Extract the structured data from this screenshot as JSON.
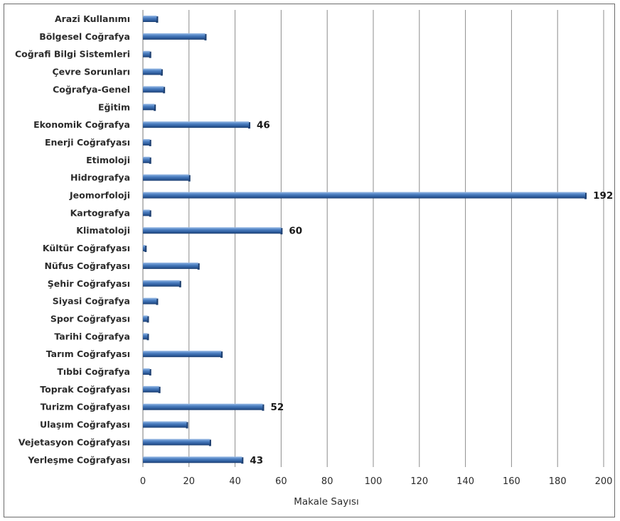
{
  "chart_data": {
    "type": "bar",
    "orientation": "horizontal",
    "title": "",
    "xlabel": "Makale Sayısı",
    "ylabel": "",
    "xlim": [
      0,
      200
    ],
    "x_ticks": [
      0,
      20,
      40,
      60,
      80,
      100,
      120,
      140,
      160,
      180,
      200
    ],
    "grid": true,
    "bar_color": "#4a7ebb",
    "categories": [
      "Arazi Kullanımı",
      "Bölgesel Coğrafya",
      "Coğrafi Bilgi Sistemleri",
      "Çevre Sorunları",
      "Coğrafya-Genel",
      "Eğitim",
      "Ekonomik Coğrafya",
      "Enerji Coğrafyası",
      "Etimoloji",
      "Hidrografya",
      "Jeomorfoloji",
      "Kartografya",
      "Klimatoloji",
      "Kültür Coğrafyası",
      "Nüfus Coğrafyası",
      "Şehir Coğrafyası",
      "Siyasi Coğrafya",
      "Spor Coğrafyası",
      "Tarihi Coğrafya",
      "Tarım Coğrafyası",
      "Tıbbi Coğrafya",
      "Toprak Coğrafyası",
      "Turizm Coğrafyası",
      "Ulaşım Coğrafyası",
      "Vejetasyon Coğrafyası",
      "Yerleşme Coğrafyası"
    ],
    "values": [
      6,
      27,
      3,
      8,
      9,
      5,
      46,
      3,
      3,
      20,
      192,
      3,
      60,
      1,
      24,
      16,
      6,
      2,
      2,
      34,
      3,
      7,
      52,
      19,
      29,
      43
    ],
    "data_labels": [
      "",
      "",
      "",
      "",
      "",
      "",
      "46",
      "",
      "",
      "",
      "192",
      "",
      "60",
      "",
      "",
      "",
      "",
      "",
      "",
      "",
      "",
      "",
      "52",
      "",
      "",
      "43"
    ]
  }
}
